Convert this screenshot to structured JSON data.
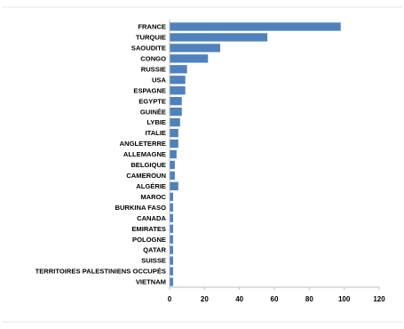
{
  "chart_data": {
    "type": "bar",
    "orientation": "horizontal",
    "categories": [
      "FRANCE",
      "TURQUIE",
      "SAOUDITE",
      "CONGO",
      "RUSSIE",
      "USA",
      "ESPAGNE",
      "EGYPTE",
      "GUINÉE",
      "LYBIE",
      "ITALIE",
      "ANGLETERRE",
      "ALLEMAGNE",
      "BELGIQUE",
      "CAMEROUN",
      "ALGÉRIE",
      "MAROC",
      "BURKINA FASO",
      "CANADA",
      "EMIRATES",
      "POLOGNE",
      "QATAR",
      "SUISSE",
      "TERRITOIRES PALESTINIENS OCCUPÉS",
      "VIETNAM"
    ],
    "values": [
      98,
      56,
      29,
      22,
      10,
      9,
      9,
      7,
      7,
      6,
      5,
      5,
      4,
      3,
      3,
      5,
      2,
      2,
      2,
      2,
      2,
      2,
      2,
      2,
      2
    ],
    "xlim": [
      0,
      120
    ],
    "xticks": [
      0,
      20,
      40,
      60,
      80,
      100,
      120
    ],
    "title": "",
    "xlabel": "",
    "ylabel": "",
    "grid": false,
    "bar_color": "#4f81bd"
  }
}
